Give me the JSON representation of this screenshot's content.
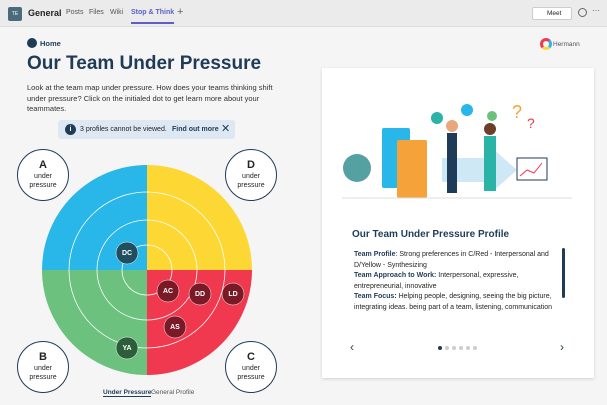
{
  "topbar": {
    "icon": "TE",
    "channel": "General",
    "tabs": [
      "Posts",
      "Files",
      "Wiki",
      "Stop & Think"
    ],
    "meet": "Meet"
  },
  "home": "Home",
  "brand": "Hermann",
  "title": "Our Team Under Pressure",
  "intro": "Look at the team map under pressure.  How does your teams thinking shift under pressure?  Click on the initialed dot to get learn more about your teammates.",
  "notice": {
    "text": "3 profiles cannot be viewed.",
    "link": "Find out more"
  },
  "quadrants": [
    {
      "letter": "A",
      "label": "under pressure"
    },
    {
      "letter": "D",
      "label": "under pressure"
    },
    {
      "letter": "B",
      "label": "under pressure"
    },
    {
      "letter": "C",
      "label": "under pressure"
    }
  ],
  "dots": [
    "DC",
    "AC",
    "DD",
    "LD",
    "AS",
    "YA"
  ],
  "toggle": [
    "Under Pressure",
    "General Profile"
  ],
  "profile": {
    "title": "Our Team Under Pressure Profile",
    "items": [
      {
        "label": "Team Profile",
        "text": ": Strong preferences in C/Red - Interpersonal and D/Yellow - Synthesizing"
      },
      {
        "label": "Team Approach to Work:",
        "text": " Interpersonal, expressive, entrepreneurial, innovative"
      },
      {
        "label": "Team Focus:",
        "text": " Helping people, designing, seeing the big picture, integrating ideas. being part of a team, listening, communication"
      }
    ]
  }
}
